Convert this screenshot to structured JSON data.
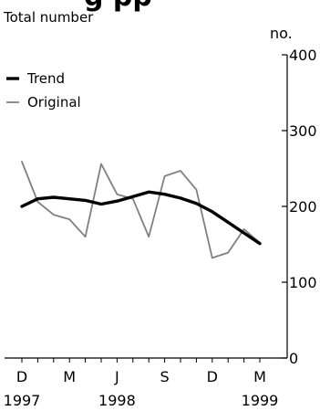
{
  "chart_data": {
    "type": "line",
    "title": "",
    "subtitle": "Total number",
    "xlabel": "",
    "ylabel": "no.",
    "ylim": [
      0,
      400
    ],
    "y_axis_side": "right",
    "y_ticks": [
      "0",
      "100",
      "200",
      "300",
      "400"
    ],
    "x_ticks": [
      {
        "month": "D",
        "year": "1997",
        "index": 0
      },
      {
        "month": "M",
        "year": "",
        "index": 3
      },
      {
        "month": "J",
        "year": "1998",
        "index": 6
      },
      {
        "month": "S",
        "year": "",
        "index": 9
      },
      {
        "month": "D",
        "year": "",
        "index": 12
      },
      {
        "month": "M",
        "year": "1999",
        "index": 15
      }
    ],
    "periods": [
      "Dec 1997",
      "Jan 1998",
      "Feb 1998",
      "Mar 1998",
      "Apr 1998",
      "May 1998",
      "Jun 1998",
      "Jul 1998",
      "Aug 1998",
      "Sep 1998",
      "Oct 1998",
      "Nov 1998",
      "Dec 1998",
      "Jan 1999",
      "Feb 1999",
      "Mar 1999"
    ],
    "series": [
      {
        "name": "Trend",
        "color": "#000000",
        "values": [
          200,
          210,
          212,
          210,
          208,
          203,
          207,
          213,
          219,
          216,
          211,
          204,
          193,
          179,
          165,
          151
        ]
      },
      {
        "name": "Original",
        "color": "#808080",
        "values": [
          259,
          206,
          189,
          183,
          160,
          256,
          216,
          210,
          160,
          240,
          247,
          222,
          132,
          139,
          170,
          152
        ]
      }
    ],
    "legend_position": "top-left",
    "grid": false
  },
  "title_fragment": "g    pp"
}
